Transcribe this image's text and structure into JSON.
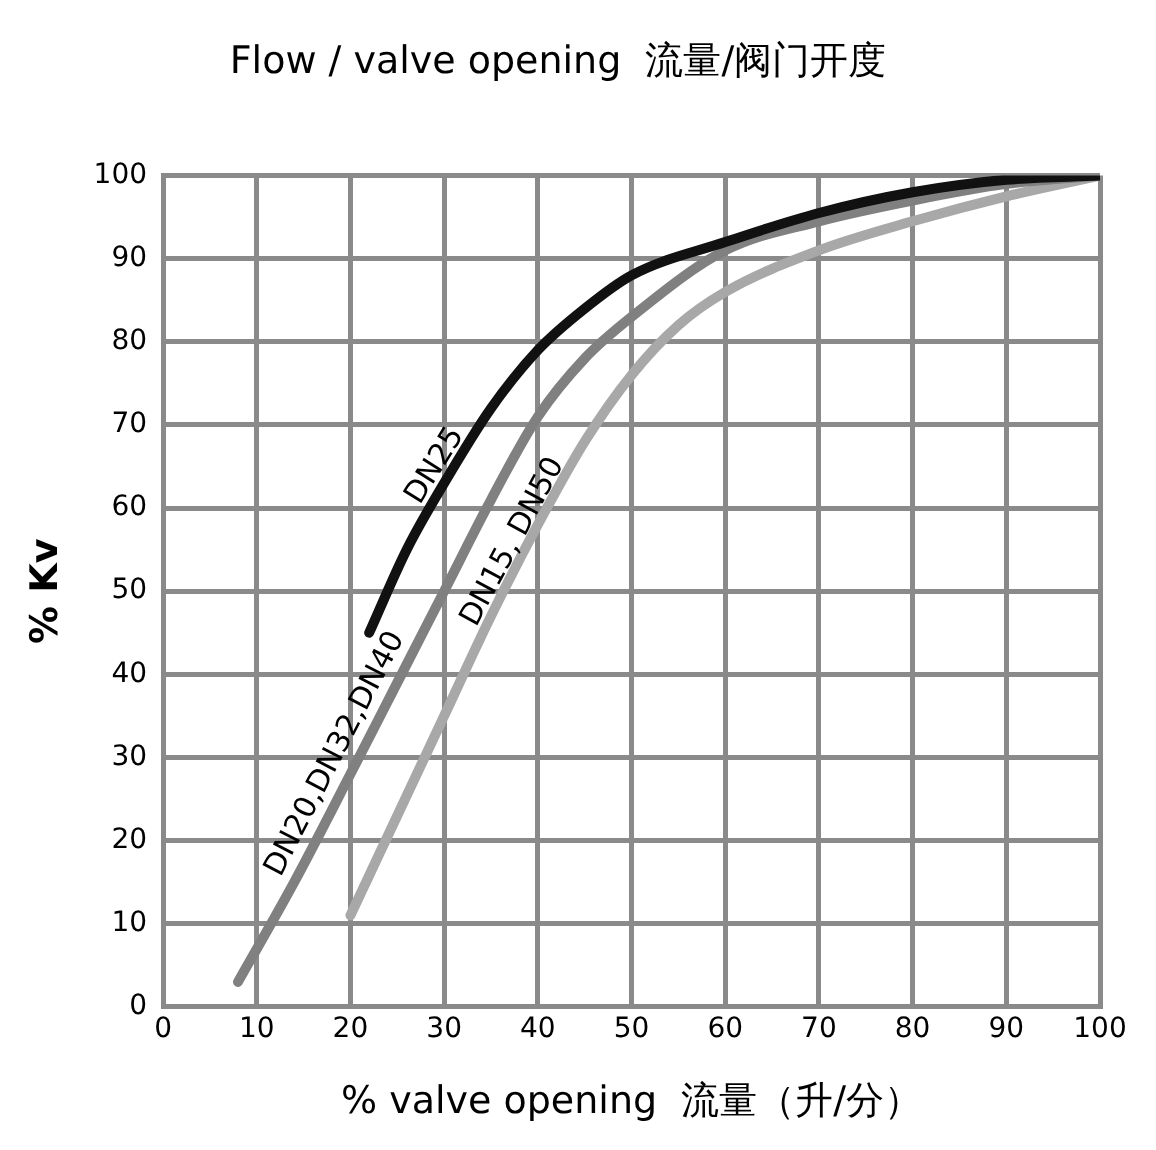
{
  "chart_data": {
    "type": "line",
    "title": "Flow / valve opening  流量/阀门开度",
    "xlabel": "% valve opening  流量（升/分）",
    "ylabel": "% Kv",
    "xlim": [
      0,
      100
    ],
    "ylim": [
      0,
      100
    ],
    "xticks": [
      0,
      10,
      20,
      30,
      40,
      50,
      60,
      70,
      80,
      90,
      100
    ],
    "yticks": [
      0,
      10,
      20,
      30,
      40,
      50,
      60,
      70,
      80,
      90,
      100
    ],
    "grid": true,
    "legend": false,
    "marker": "none",
    "line_style": "solid",
    "series": [
      {
        "name": "DN25",
        "color": "#111111",
        "x": [
          22,
          26,
          30,
          35,
          40,
          45,
          50,
          60,
          70,
          80,
          90,
          100
        ],
        "values": [
          45,
          55,
          63,
          72,
          79,
          84,
          88,
          92,
          95.5,
          98,
          99.5,
          100
        ]
      },
      {
        "name": "DN20,DN32,DN40",
        "color": "#808080",
        "x": [
          8,
          14,
          20,
          25,
          30,
          35,
          40,
          45,
          50,
          60,
          70,
          80,
          90,
          100
        ],
        "values": [
          3,
          15,
          28,
          39,
          50,
          61,
          71,
          78,
          83,
          91,
          94.5,
          97,
          99,
          100
        ]
      },
      {
        "name": "DN15, DN50",
        "color": "#a8a8a8",
        "x": [
          20,
          25,
          30,
          35,
          40,
          45,
          50,
          55,
          60,
          70,
          80,
          90,
          100
        ],
        "values": [
          11,
          23,
          35,
          47,
          58,
          68,
          76,
          82,
          86,
          91,
          94.5,
          97.5,
          100
        ]
      }
    ]
  }
}
